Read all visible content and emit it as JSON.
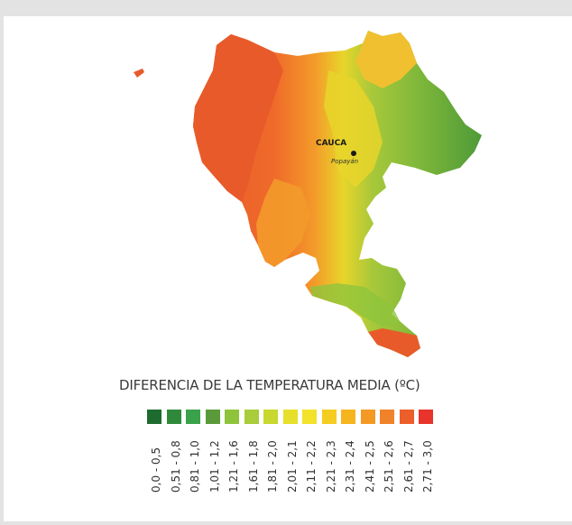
{
  "map": {
    "city_label": "CAUCA",
    "city_sub": "Popayán",
    "colors": {
      "lowland": "#e85a2a",
      "mid": "#f39a2a",
      "yellow": "#e8d52a",
      "green": "#7fb83a",
      "darkgreen": "#4f9a38"
    }
  },
  "legend": {
    "title": "DIFERENCIA DE LA  TEMPERATURA MEDIA (ºC)",
    "items": [
      {
        "label": "0,0 - 0,5",
        "color": "#1e6b2e"
      },
      {
        "label": "0,51 - 0,8",
        "color": "#2e8a3a"
      },
      {
        "label": "0,81 - 1,0",
        "color": "#3aa24a"
      },
      {
        "label": "1,01 - 1,2",
        "color": "#5a9a3a"
      },
      {
        "label": "1,21 - 1,6",
        "color": "#8ec43c"
      },
      {
        "label": "1,61 - 1,8",
        "color": "#a8cc3a"
      },
      {
        "label": "1,81 - 2,0",
        "color": "#c8d82e"
      },
      {
        "label": "2,01 - 2,1",
        "color": "#e6e02a"
      },
      {
        "label": "2,11 - 2,2",
        "color": "#f2e22a"
      },
      {
        "label": "2,21 - 2,3",
        "color": "#f5cc20"
      },
      {
        "label": "2,31 - 2,4",
        "color": "#f6b41e"
      },
      {
        "label": "2,41 - 2,5",
        "color": "#f49a24"
      },
      {
        "label": "2,51 - 2,6",
        "color": "#f0822a"
      },
      {
        "label": "2,61 - 2,7",
        "color": "#ec5e2a"
      },
      {
        "label": "2,71 - 3,0",
        "color": "#e8342a"
      }
    ]
  }
}
